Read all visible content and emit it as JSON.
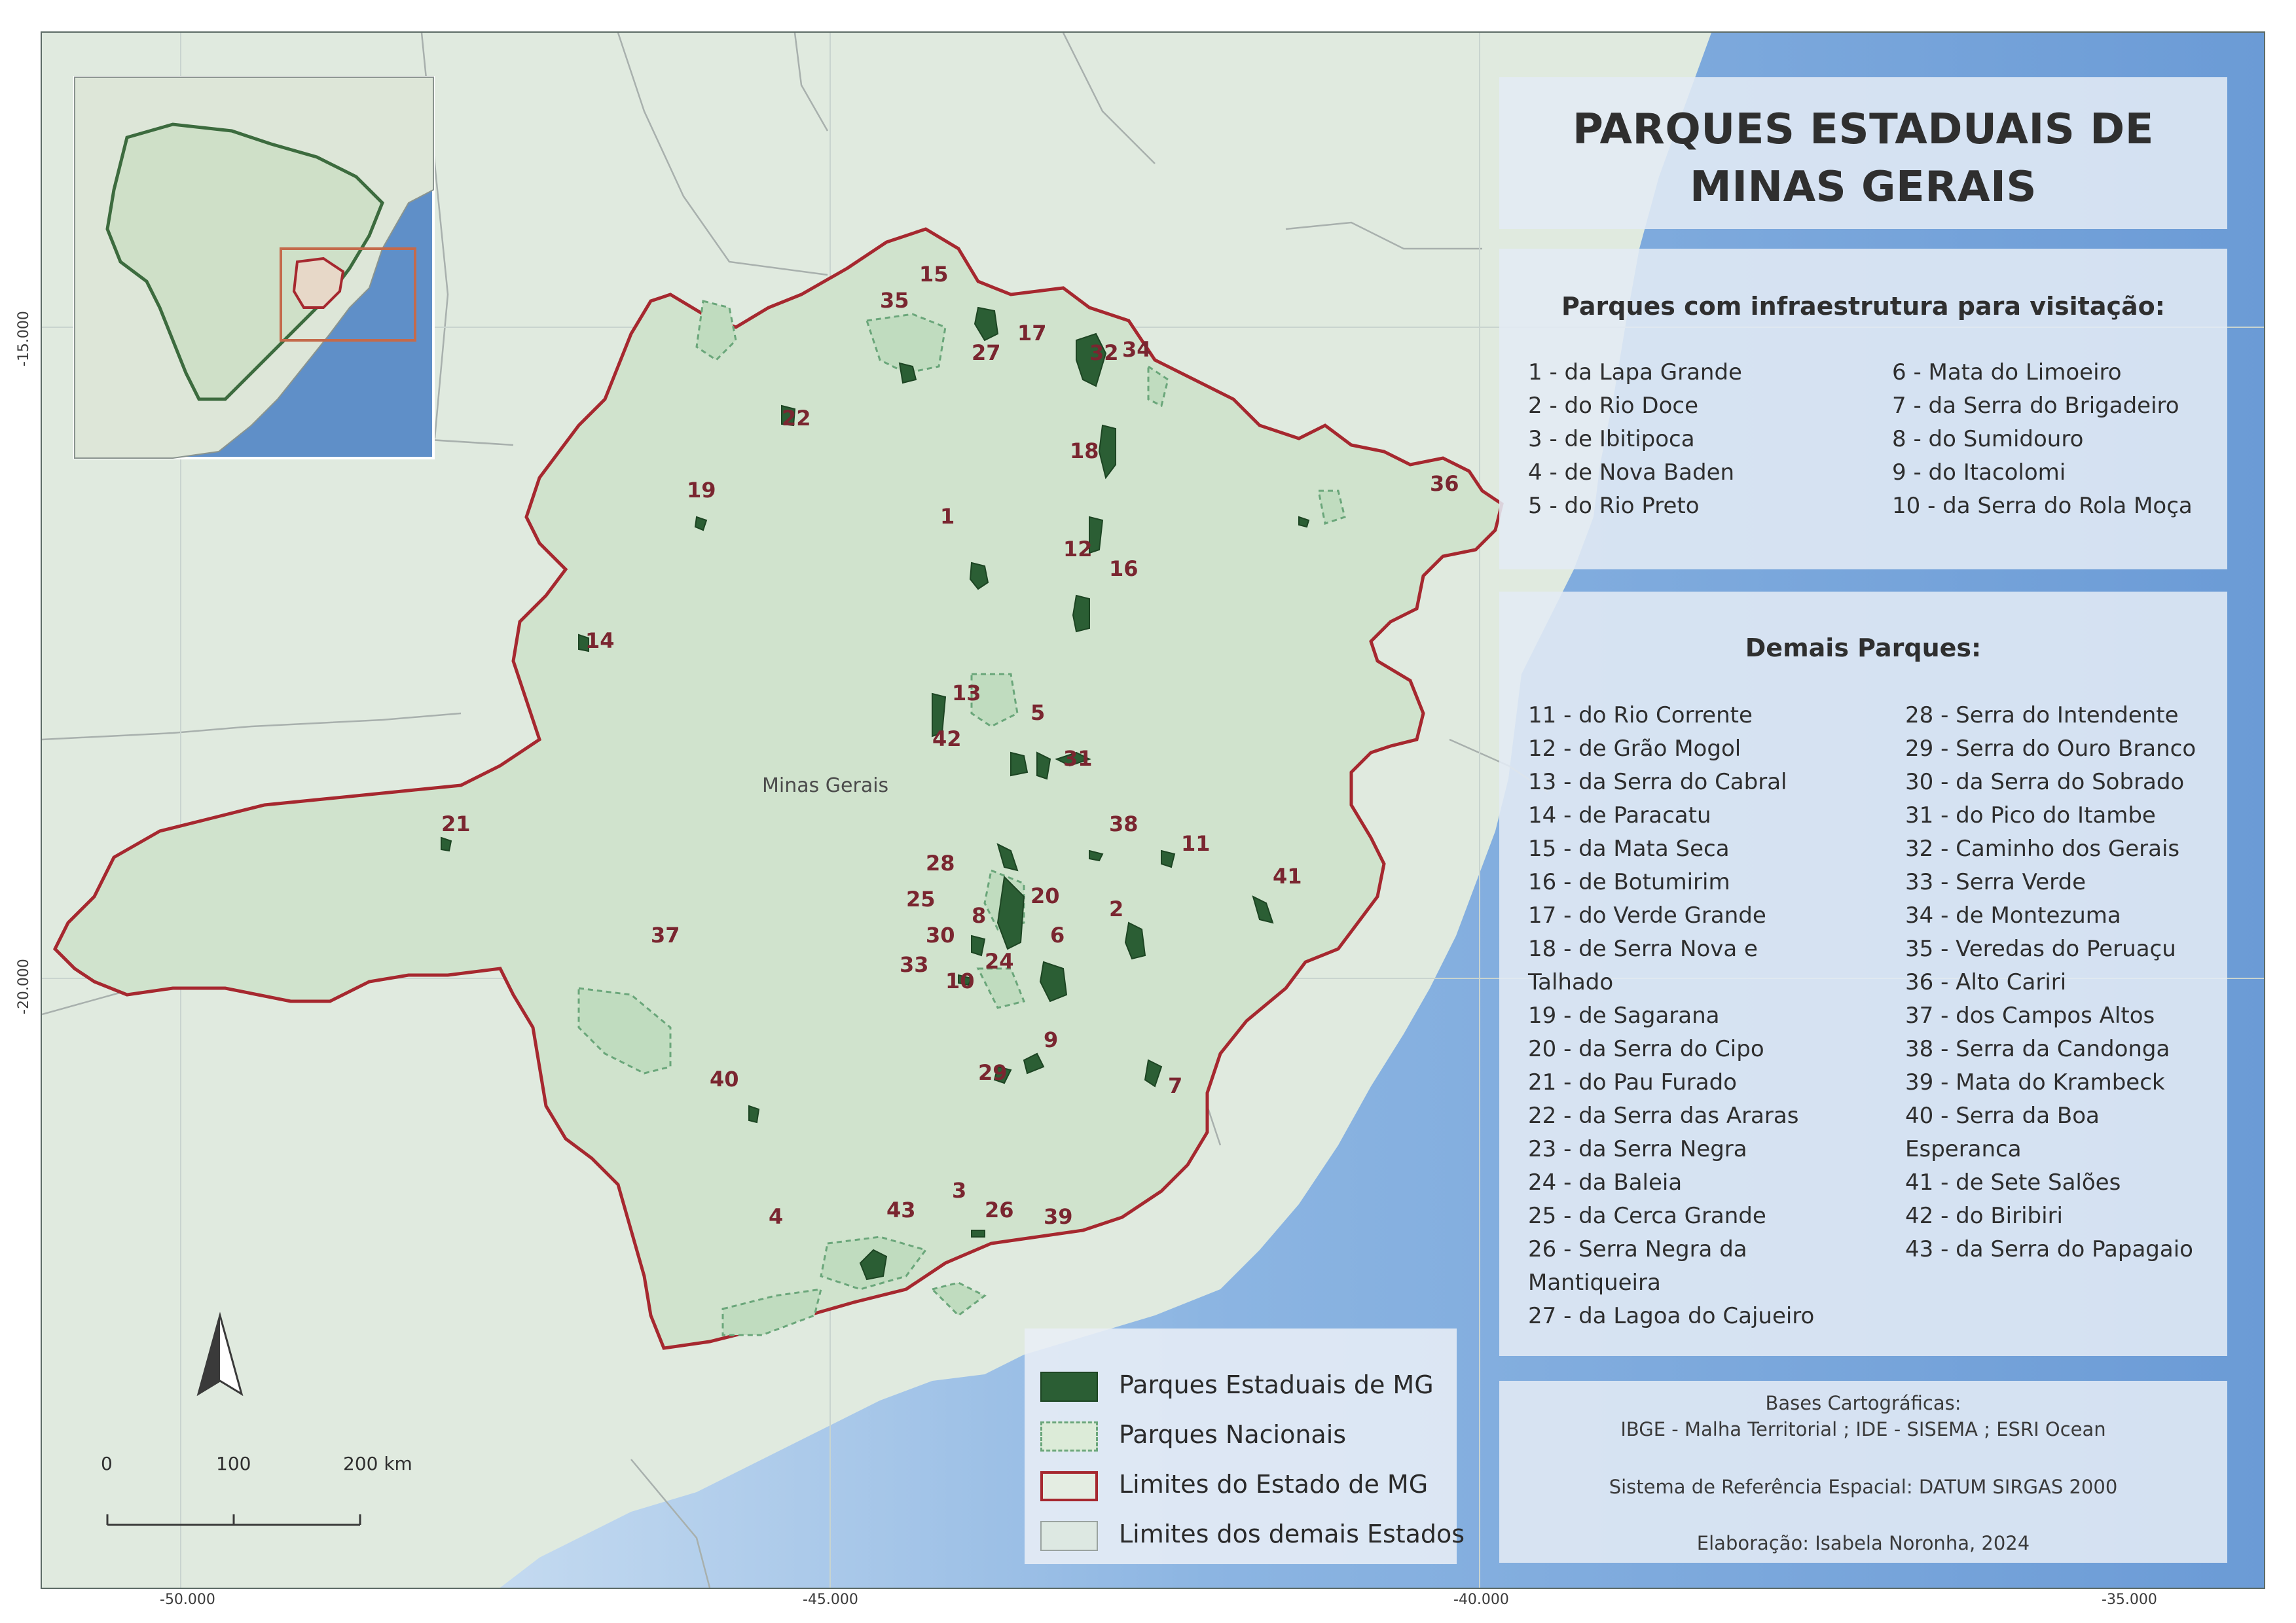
{
  "title": "PARQUES ESTADUAIS DE MINAS GERAIS",
  "visitation": {
    "heading": "Parques com infraestrutura para visitação:",
    "col1": [
      "1 - da Lapa Grande",
      "2 - do Rio Doce",
      "3 - de Ibitipoca",
      "4 - de Nova Baden",
      "5 - do Rio Preto"
    ],
    "col2": [
      "6 - Mata do Limoeiro",
      "7 - da Serra do Brigadeiro",
      "8 - do Sumidouro",
      "9 - do Itacolomi",
      "10 - da Serra do Rola Moça"
    ]
  },
  "others": {
    "heading": "Demais Parques:",
    "col1": [
      "11 - do Rio Corrente",
      "12 - de Grão Mogol",
      "13 - da Serra do Cabral",
      "14 - de Paracatu",
      "15 - da Mata Seca",
      "16 - de Botumirim",
      "17 - do Verde Grande",
      "18 - de Serra Nova e",
      "Talhado",
      "19 - de Sagarana",
      "20 - da Serra do Cipo",
      "21 - do Pau Furado",
      "22 - da Serra das Araras",
      "23 - da Serra Negra",
      "24 - da Baleia",
      "25 - da Cerca Grande",
      "26 - Serra Negra da",
      "Mantiqueira",
      "27 - da Lagoa do Cajueiro"
    ],
    "col2": [
      "28 - Serra do Intendente",
      "29 - Serra do Ouro Branco",
      "30 - da Serra do Sobrado",
      "31 - do Pico do Itambe",
      "32 - Caminho dos Gerais",
      "33 - Serra Verde",
      "34 - de Montezuma",
      "35 - Veredas do Peruaçu",
      "36 - Alto Cariri",
      "37 - dos Campos Altos",
      "38 - Serra da Candonga",
      "39 - Mata do Krambeck",
      "40 - Serra da Boa",
      "Esperanca",
      "41 - de Sete Salões",
      "42 - do Biribiri",
      "43 - da Serra do Papagaio"
    ]
  },
  "credits": {
    "title": "Bases Cartográficas:",
    "bases": "IBGE - Malha Territorial ; IDE - SISEMA ; ESRI Ocean",
    "srs": "Sistema de Referência Espacial: DATUM SIRGAS 2000",
    "author": "Elaboração: Isabela Noronha, 2024"
  },
  "legend": [
    {
      "label": "Parques Estaduais de MG"
    },
    {
      "label": "Parques Nacionais"
    },
    {
      "label": "Limites do Estado de MG"
    },
    {
      "label": "Limites dos demais Estados"
    }
  ],
  "scale_bar": {
    "labels": [
      "0",
      "100",
      "200 km"
    ]
  },
  "coords": {
    "x_ticks": [
      "-50.000",
      "-45.000",
      "-40.000",
      "-35.000"
    ],
    "y_ticks": [
      "-15.000",
      "-20.000"
    ]
  },
  "place_label": "Minas Gerais",
  "park_labels": [
    "1",
    "2",
    "3",
    "4",
    "5",
    "6",
    "7",
    "8",
    "9",
    "10",
    "11",
    "12",
    "13",
    "14",
    "15",
    "16",
    "17",
    "18",
    "19",
    "20",
    "21",
    "22",
    "24",
    "25",
    "26",
    "27",
    "28",
    "29",
    "30",
    "31",
    "32",
    "33",
    "34",
    "35",
    "36",
    "37",
    "38",
    "39",
    "40",
    "41",
    "42",
    "43"
  ],
  "colors": {
    "land": "#dfe9dc",
    "state_fill": "#cfe2cc",
    "state_border": "#a6282f",
    "park_fill": "#2b5e34",
    "national_park": "#6aa67a",
    "ocean": "#7aa6d8",
    "label": "#7a2630"
  }
}
